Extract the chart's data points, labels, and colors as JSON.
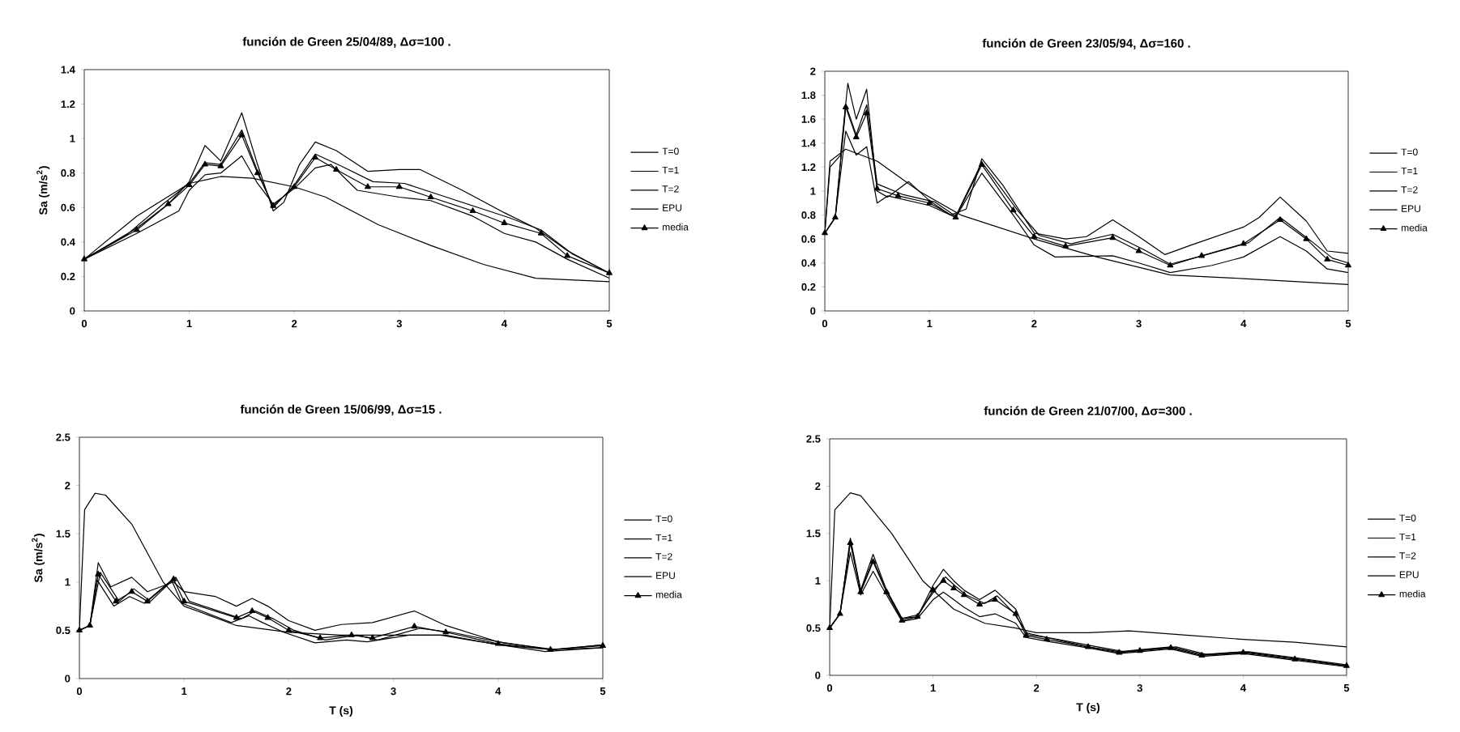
{
  "chart_data": [
    {
      "type": "line",
      "title": "función de Green 25/04/89, Δσ=100 .",
      "ylabel": "Sa (m/s$^{2}$)",
      "xlim": [
        0,
        5
      ],
      "xticks": [
        0,
        1,
        2,
        3,
        4,
        5
      ],
      "ylim": [
        0,
        1.4
      ],
      "yticks": [
        0,
        0.2,
        0.4,
        0.6,
        0.8,
        1,
        1.2,
        1.4
      ],
      "legend": "right",
      "grid": false,
      "series": [
        {
          "name": "T=0",
          "color": "#000000",
          "marker": "none",
          "line_style": "solid",
          "x": [
            0,
            0.5,
            0.8,
            1.0,
            1.15,
            1.3,
            1.5,
            1.65,
            1.8,
            1.9,
            2.05,
            2.2,
            2.4,
            2.7,
            3.0,
            3.2,
            3.6,
            4.0,
            4.3,
            4.6,
            5
          ],
          "values": [
            0.3,
            0.48,
            0.62,
            0.75,
            0.96,
            0.87,
            1.15,
            0.85,
            0.58,
            0.63,
            0.85,
            0.98,
            0.93,
            0.81,
            0.82,
            0.82,
            0.7,
            0.57,
            0.48,
            0.35,
            0.22
          ]
        },
        {
          "name": "T=1",
          "color": "#000000",
          "marker": "none",
          "line_style": "solid",
          "x": [
            0,
            0.4,
            0.75,
            1.0,
            1.15,
            1.3,
            1.5,
            1.65,
            1.8,
            2.0,
            2.2,
            2.45,
            2.75,
            3.05,
            3.35,
            3.75,
            4.05,
            4.35,
            4.65,
            5
          ],
          "values": [
            0.3,
            0.44,
            0.62,
            0.74,
            0.86,
            0.85,
            1.05,
            0.81,
            0.6,
            0.73,
            0.91,
            0.84,
            0.75,
            0.74,
            0.68,
            0.6,
            0.54,
            0.47,
            0.33,
            0.22
          ]
        },
        {
          "name": "T=2",
          "color": "#000000",
          "marker": "none",
          "line_style": "solid",
          "x": [
            0,
            0.5,
            0.9,
            1.0,
            1.15,
            1.3,
            1.5,
            1.65,
            1.8,
            2.0,
            2.2,
            2.35,
            2.6,
            3.0,
            3.3,
            3.7,
            4.0,
            4.3,
            4.6,
            5
          ],
          "values": [
            0.3,
            0.45,
            0.58,
            0.7,
            0.79,
            0.8,
            0.9,
            0.74,
            0.62,
            0.71,
            0.83,
            0.85,
            0.7,
            0.66,
            0.64,
            0.55,
            0.45,
            0.4,
            0.3,
            0.19
          ]
        },
        {
          "name": "EPU",
          "color": "#000000",
          "marker": "none",
          "line_style": "solid",
          "x": [
            0,
            0.5,
            1,
            1.3,
            1.6,
            2,
            2.3,
            2.8,
            3.3,
            3.8,
            4.3,
            5
          ],
          "values": [
            0.3,
            0.55,
            0.74,
            0.78,
            0.77,
            0.72,
            0.66,
            0.5,
            0.38,
            0.27,
            0.19,
            0.17
          ]
        },
        {
          "name": "media",
          "color": "#000000",
          "marker": "triangle",
          "line_style": "solid",
          "x": [
            0,
            0.5,
            0.8,
            1.0,
            1.15,
            1.3,
            1.5,
            1.65,
            1.8,
            2.0,
            2.2,
            2.4,
            2.7,
            3.0,
            3.3,
            3.7,
            4.0,
            4.35,
            4.6,
            5
          ],
          "values": [
            0.3,
            0.47,
            0.62,
            0.73,
            0.85,
            0.84,
            1.02,
            0.8,
            0.61,
            0.72,
            0.89,
            0.82,
            0.72,
            0.72,
            0.66,
            0.58,
            0.51,
            0.45,
            0.32,
            0.22
          ]
        }
      ]
    },
    {
      "type": "line",
      "title": "función de Green 23/05/94, Δσ=160 .",
      "xlim": [
        0,
        5
      ],
      "xticks": [
        0,
        1,
        2,
        3,
        4,
        5
      ],
      "ylim": [
        0,
        2
      ],
      "yticks": [
        0,
        0.2,
        0.4,
        0.6,
        0.8,
        1,
        1.2,
        1.4,
        1.6,
        1.8,
        2
      ],
      "legend": "right",
      "grid": false,
      "series": [
        {
          "name": "T=0",
          "color": "#000000",
          "marker": "none",
          "line_style": "solid",
          "x": [
            0,
            0.05,
            0.15,
            0.22,
            0.3,
            0.4,
            0.5,
            0.6,
            0.8,
            1.0,
            1.2,
            1.35,
            1.5,
            1.7,
            2.0,
            2.3,
            2.5,
            2.75,
            3.0,
            3.25,
            3.5,
            4.0,
            4.15,
            4.35,
            4.6,
            4.8,
            5
          ],
          "values": [
            0.65,
            1.2,
            1.3,
            1.9,
            1.6,
            1.85,
            1.0,
            0.95,
            1.08,
            0.92,
            0.8,
            0.85,
            1.27,
            1.05,
            0.65,
            0.6,
            0.62,
            0.76,
            0.62,
            0.47,
            0.55,
            0.7,
            0.78,
            0.95,
            0.75,
            0.5,
            0.48
          ]
        },
        {
          "name": "T=1",
          "color": "#000000",
          "marker": "none",
          "line_style": "solid",
          "x": [
            0,
            0.1,
            0.2,
            0.3,
            0.4,
            0.5,
            0.75,
            1.05,
            1.25,
            1.5,
            1.85,
            2.05,
            2.35,
            2.75,
            3.05,
            3.3,
            3.65,
            4.05,
            4.35,
            4.65,
            4.85,
            5
          ],
          "values": [
            0.65,
            0.78,
            1.72,
            1.47,
            1.72,
            1.06,
            0.97,
            0.91,
            0.79,
            1.24,
            0.83,
            0.63,
            0.56,
            0.64,
            0.51,
            0.39,
            0.47,
            0.57,
            0.78,
            0.58,
            0.44,
            0.4
          ]
        },
        {
          "name": "T=2",
          "color": "#000000",
          "marker": "none",
          "line_style": "solid",
          "x": [
            0,
            0.1,
            0.2,
            0.3,
            0.4,
            0.5,
            0.6,
            1.0,
            1.25,
            1.5,
            1.8,
            2.0,
            2.2,
            2.75,
            3.0,
            3.3,
            3.7,
            4.0,
            4.35,
            4.6,
            4.8,
            5
          ],
          "values": [
            0.65,
            0.78,
            1.5,
            1.3,
            1.37,
            0.9,
            0.96,
            0.88,
            0.78,
            1.15,
            0.8,
            0.55,
            0.45,
            0.46,
            0.4,
            0.32,
            0.38,
            0.45,
            0.62,
            0.5,
            0.35,
            0.32
          ]
        },
        {
          "name": "EPU",
          "color": "#000000",
          "marker": "none",
          "line_style": "solid",
          "x": [
            0,
            0.05,
            0.2,
            0.5,
            0.9,
            1.3,
            2.0,
            2.6,
            3.3,
            4.0,
            5
          ],
          "values": [
            0.65,
            1.25,
            1.35,
            1.25,
            1.0,
            0.8,
            0.6,
            0.45,
            0.3,
            0.27,
            0.22
          ]
        },
        {
          "name": "media",
          "color": "#000000",
          "marker": "triangle",
          "line_style": "solid",
          "x": [
            0,
            0.1,
            0.2,
            0.3,
            0.4,
            0.5,
            0.7,
            1.0,
            1.25,
            1.5,
            1.8,
            2.0,
            2.3,
            2.75,
            3.0,
            3.3,
            3.6,
            4.0,
            4.35,
            4.6,
            4.8,
            5
          ],
          "values": [
            0.65,
            0.78,
            1.7,
            1.45,
            1.65,
            1.02,
            0.96,
            0.9,
            0.78,
            1.22,
            0.84,
            0.62,
            0.54,
            0.61,
            0.5,
            0.38,
            0.46,
            0.56,
            0.76,
            0.6,
            0.43,
            0.38
          ]
        }
      ]
    },
    {
      "type": "line",
      "title": "función de Green 15/06/99, Δσ=15 .",
      "xlabel": "T (s)",
      "ylabel": "Sa (m/s$^{2}$)",
      "xlim": [
        0,
        5
      ],
      "xticks": [
        0,
        1,
        2,
        3,
        4,
        5
      ],
      "ylim": [
        0,
        2.5
      ],
      "yticks": [
        0,
        0.5,
        1,
        1.5,
        2,
        2.5
      ],
      "legend": "right",
      "grid": false,
      "series": [
        {
          "name": "T=0",
          "color": "#000000",
          "marker": "none",
          "line_style": "solid",
          "x": [
            0,
            0.1,
            0.18,
            0.3,
            0.5,
            0.65,
            0.9,
            1.0,
            1.3,
            1.5,
            1.65,
            1.8,
            2.0,
            2.25,
            2.5,
            2.8,
            3.2,
            3.5,
            4.0,
            4.5,
            5
          ],
          "values": [
            0.5,
            0.55,
            1.2,
            0.95,
            1.05,
            0.9,
            1.0,
            0.9,
            0.85,
            0.75,
            0.83,
            0.75,
            0.6,
            0.5,
            0.56,
            0.58,
            0.7,
            0.55,
            0.38,
            0.3,
            0.35
          ]
        },
        {
          "name": "T=1",
          "color": "#000000",
          "marker": "none",
          "line_style": "solid",
          "x": [
            0,
            0.1,
            0.2,
            0.38,
            0.52,
            0.68,
            0.92,
            1.05,
            1.55,
            1.68,
            1.85,
            2.05,
            2.35,
            2.65,
            2.85,
            3.25,
            3.55,
            4.05,
            4.55,
            5
          ],
          "values": [
            0.5,
            0.55,
            1.1,
            0.8,
            0.93,
            0.8,
            1.05,
            0.8,
            0.62,
            0.7,
            0.62,
            0.5,
            0.4,
            0.45,
            0.4,
            0.52,
            0.48,
            0.37,
            0.3,
            0.35
          ]
        },
        {
          "name": "T=2",
          "color": "#000000",
          "marker": "none",
          "line_style": "solid",
          "x": [
            0,
            0.1,
            0.17,
            0.33,
            0.48,
            0.62,
            0.88,
            0.98,
            1.45,
            1.62,
            1.75,
            1.95,
            2.25,
            2.55,
            2.75,
            3.15,
            3.45,
            3.95,
            4.45,
            5
          ],
          "values": [
            0.5,
            0.55,
            1.02,
            0.75,
            0.85,
            0.78,
            1.02,
            0.78,
            0.58,
            0.65,
            0.58,
            0.48,
            0.37,
            0.4,
            0.38,
            0.45,
            0.45,
            0.36,
            0.28,
            0.32
          ]
        },
        {
          "name": "EPU",
          "color": "#000000",
          "marker": "none",
          "line_style": "solid",
          "x": [
            0,
            0.05,
            0.15,
            0.25,
            0.5,
            0.8,
            1.0,
            1.5,
            2.0,
            2.5,
            3.0,
            3.5,
            4.0,
            4.5,
            5
          ],
          "values": [
            0.5,
            1.75,
            1.92,
            1.9,
            1.6,
            1.0,
            0.75,
            0.55,
            0.48,
            0.45,
            0.45,
            0.45,
            0.35,
            0.3,
            0.32
          ]
        },
        {
          "name": "media",
          "color": "#000000",
          "marker": "triangle",
          "line_style": "solid",
          "x": [
            0,
            0.1,
            0.18,
            0.35,
            0.5,
            0.65,
            0.9,
            1.0,
            1.5,
            1.65,
            1.8,
            2.0,
            2.3,
            2.6,
            2.8,
            3.2,
            3.5,
            4.0,
            4.5,
            5
          ],
          "values": [
            0.5,
            0.55,
            1.08,
            0.8,
            0.9,
            0.8,
            1.03,
            0.8,
            0.63,
            0.7,
            0.63,
            0.5,
            0.42,
            0.45,
            0.42,
            0.54,
            0.48,
            0.36,
            0.3,
            0.34
          ]
        }
      ]
    },
    {
      "type": "line",
      "title": "función de Green 21/07/00, Δσ=300 .",
      "xlabel": "T (s)",
      "xlim": [
        0,
        5
      ],
      "xticks": [
        0,
        1,
        2,
        3,
        4,
        5
      ],
      "ylim": [
        0,
        2.5
      ],
      "yticks": [
        0,
        0.5,
        1,
        1.5,
        2,
        2.5
      ],
      "legend": "right",
      "grid": false,
      "series": [
        {
          "name": "T=0",
          "color": "#000000",
          "marker": "none",
          "line_style": "solid",
          "x": [
            0,
            0.1,
            0.2,
            0.3,
            0.42,
            0.55,
            0.7,
            0.85,
            1.0,
            1.1,
            1.2,
            1.3,
            1.45,
            1.6,
            1.8,
            1.9,
            2.1,
            2.5,
            2.8,
            3.0,
            3.3,
            3.6,
            4.0,
            4.5,
            5
          ],
          "values": [
            0.5,
            0.65,
            1.45,
            0.9,
            1.28,
            0.9,
            0.6,
            0.62,
            0.95,
            1.12,
            1.0,
            0.9,
            0.8,
            0.9,
            0.7,
            0.45,
            0.4,
            0.3,
            0.25,
            0.27,
            0.3,
            0.22,
            0.25,
            0.18,
            0.1
          ]
        },
        {
          "name": "T=1",
          "color": "#000000",
          "marker": "none",
          "line_style": "solid",
          "x": [
            0,
            0.1,
            0.2,
            0.3,
            0.42,
            0.55,
            0.7,
            0.85,
            1.05,
            1.12,
            1.22,
            1.32,
            1.5,
            1.62,
            1.78,
            1.92,
            2.15,
            2.55,
            2.85,
            3.05,
            3.35,
            3.65,
            4.05,
            4.55,
            5
          ],
          "values": [
            0.5,
            0.65,
            1.42,
            0.9,
            1.22,
            0.9,
            0.6,
            0.64,
            0.95,
            1.04,
            0.94,
            0.85,
            0.76,
            0.84,
            0.66,
            0.43,
            0.39,
            0.31,
            0.25,
            0.27,
            0.3,
            0.22,
            0.25,
            0.18,
            0.11
          ]
        },
        {
          "name": "T=2",
          "color": "#000000",
          "marker": "none",
          "line_style": "solid",
          "x": [
            0,
            0.1,
            0.2,
            0.3,
            0.42,
            0.55,
            0.7,
            0.85,
            1.0,
            1.1,
            1.2,
            1.3,
            1.45,
            1.6,
            1.8,
            1.9,
            2.1,
            2.5,
            2.8,
            3.0,
            3.3,
            3.6,
            4.0,
            4.5,
            5
          ],
          "values": [
            0.5,
            0.65,
            1.3,
            0.85,
            1.1,
            0.85,
            0.57,
            0.6,
            0.8,
            0.88,
            0.8,
            0.72,
            0.62,
            0.65,
            0.55,
            0.4,
            0.36,
            0.29,
            0.23,
            0.25,
            0.28,
            0.2,
            0.23,
            0.16,
            0.09
          ]
        },
        {
          "name": "EPU",
          "color": "#000000",
          "marker": "none",
          "line_style": "solid",
          "x": [
            0,
            0.05,
            0.2,
            0.3,
            0.6,
            0.9,
            1.2,
            1.5,
            1.8,
            2.0,
            2.5,
            2.9,
            3.5,
            4.0,
            4.5,
            5
          ],
          "values": [
            0.5,
            1.75,
            1.93,
            1.9,
            1.5,
            1.0,
            0.7,
            0.55,
            0.5,
            0.45,
            0.45,
            0.47,
            0.42,
            0.38,
            0.35,
            0.3
          ]
        },
        {
          "name": "media",
          "color": "#000000",
          "marker": "triangle",
          "line_style": "solid",
          "x": [
            0,
            0.1,
            0.2,
            0.3,
            0.42,
            0.55,
            0.7,
            0.85,
            1.0,
            1.1,
            1.2,
            1.3,
            1.45,
            1.6,
            1.8,
            1.9,
            2.1,
            2.5,
            2.8,
            3.0,
            3.3,
            3.6,
            4.0,
            4.5,
            5
          ],
          "values": [
            0.5,
            0.65,
            1.4,
            0.88,
            1.2,
            0.88,
            0.58,
            0.62,
            0.9,
            1.0,
            0.92,
            0.85,
            0.75,
            0.8,
            0.65,
            0.42,
            0.38,
            0.3,
            0.24,
            0.26,
            0.29,
            0.21,
            0.24,
            0.17,
            0.1
          ]
        }
      ]
    }
  ]
}
